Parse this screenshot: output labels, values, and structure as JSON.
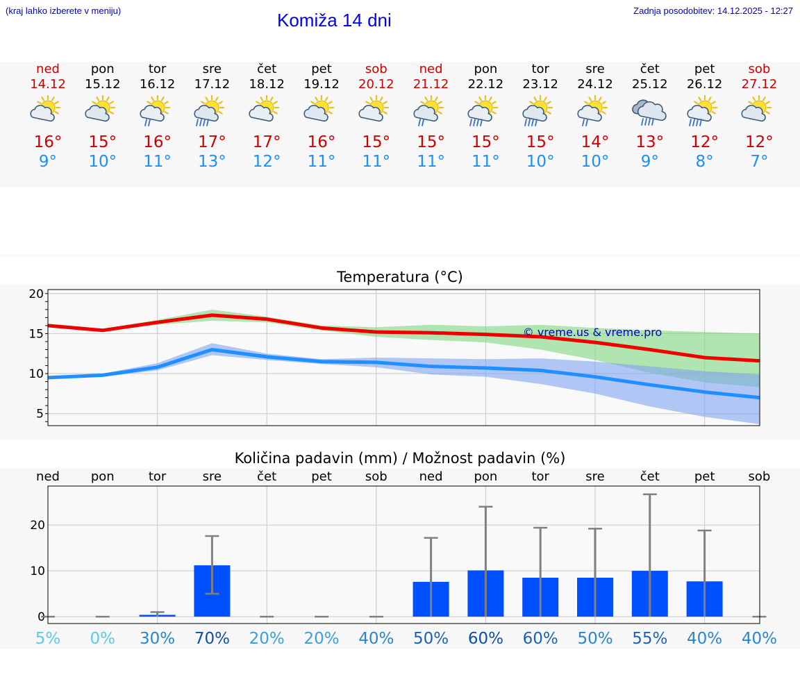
{
  "header": {
    "hint": "(kraj lahko izberete v meniju)",
    "title": "Komiža 14 dni",
    "updated": "Zadnja posodobitev: 14.12.2025 - 12:27"
  },
  "days": [
    {
      "name": "ned",
      "date": "14.12",
      "weekend": true,
      "icon": "sun-cloud-icon",
      "tmax": "16°",
      "tmin": "9°"
    },
    {
      "name": "pon",
      "date": "15.12",
      "weekend": false,
      "icon": "sun-cloud-icon",
      "tmax": "15°",
      "tmin": "10°"
    },
    {
      "name": "tor",
      "date": "16.12",
      "weekend": false,
      "icon": "sun-cloud-rain-icon",
      "tmax": "16°",
      "tmin": "11°"
    },
    {
      "name": "sre",
      "date": "17.12",
      "weekend": false,
      "icon": "sun-cloud-rain-icon",
      "tmax": "17°",
      "tmin": "13°"
    },
    {
      "name": "čet",
      "date": "18.12",
      "weekend": false,
      "icon": "sun-cloud-icon",
      "tmax": "17°",
      "tmin": "12°"
    },
    {
      "name": "pet",
      "date": "19.12",
      "weekend": false,
      "icon": "sun-cloud-icon",
      "tmax": "16°",
      "tmin": "11°"
    },
    {
      "name": "sob",
      "date": "20.12",
      "weekend": true,
      "icon": "sun-cloud-icon",
      "tmax": "15°",
      "tmin": "11°"
    },
    {
      "name": "ned",
      "date": "21.12",
      "weekend": true,
      "icon": "sun-cloud-rain-icon",
      "tmax": "15°",
      "tmin": "11°"
    },
    {
      "name": "pon",
      "date": "22.12",
      "weekend": false,
      "icon": "sun-cloud-rain-icon",
      "tmax": "15°",
      "tmin": "11°"
    },
    {
      "name": "tor",
      "date": "23.12",
      "weekend": false,
      "icon": "sun-cloud-rain-icon",
      "tmax": "15°",
      "tmin": "10°"
    },
    {
      "name": "sre",
      "date": "24.12",
      "weekend": false,
      "icon": "sun-cloud-rain-icon",
      "tmax": "14°",
      "tmin": "10°"
    },
    {
      "name": "čet",
      "date": "25.12",
      "weekend": false,
      "icon": "cloud-rain-icon",
      "tmax": "13°",
      "tmin": "9°"
    },
    {
      "name": "pet",
      "date": "26.12",
      "weekend": false,
      "icon": "sun-cloud-rain-icon",
      "tmax": "12°",
      "tmin": "8°"
    },
    {
      "name": "sob",
      "date": "27.12",
      "weekend": true,
      "icon": "sun-cloud-icon",
      "tmax": "12°",
      "tmin": "7°"
    }
  ],
  "colors": {
    "tmax_line": "#ee0000",
    "tmax_band": "#7ed67e",
    "tmin_line": "#1e90ff",
    "tmin_band": "#7ea4f0",
    "bar": "#0050ff",
    "errorbar": "#808080",
    "grid": "#c8c8c8",
    "copyright": "#0000cc"
  },
  "chart_data": [
    {
      "type": "line",
      "title": "Temperatura (°C)",
      "annotation": "© vreme.us & vreme.pro",
      "x": [
        0,
        1,
        2,
        3,
        4,
        5,
        6,
        7,
        8,
        9,
        10,
        11,
        12,
        13
      ],
      "ylim": [
        3.5,
        20.5
      ],
      "yticks": [
        5,
        10,
        15,
        20
      ],
      "series": [
        {
          "name": "tmax",
          "values": [
            16.0,
            15.4,
            16.4,
            17.3,
            16.8,
            15.7,
            15.2,
            15.1,
            14.9,
            14.6,
            13.9,
            13.0,
            12.0,
            11.6
          ],
          "band_low": [
            16.0,
            15.3,
            16.1,
            16.6,
            16.4,
            15.4,
            14.6,
            14.2,
            13.9,
            13.0,
            11.7,
            10.1,
            8.9,
            8.3
          ],
          "band_high": [
            16.0,
            15.6,
            16.7,
            18.0,
            17.1,
            16.0,
            15.8,
            16.1,
            15.9,
            16.1,
            15.7,
            15.4,
            15.2,
            15.0
          ]
        },
        {
          "name": "tmin",
          "values": [
            9.5,
            9.8,
            10.8,
            13.0,
            12.1,
            11.5,
            11.4,
            10.9,
            10.7,
            10.4,
            9.6,
            8.6,
            7.7,
            7.0
          ],
          "band_low": [
            9.4,
            9.6,
            10.4,
            12.3,
            11.7,
            11.2,
            10.8,
            9.9,
            9.6,
            8.7,
            7.5,
            5.9,
            4.6,
            3.7
          ],
          "band_high": [
            9.6,
            10.0,
            11.3,
            13.8,
            12.5,
            11.8,
            12.0,
            11.9,
            11.8,
            11.9,
            11.5,
            10.9,
            10.3,
            9.9
          ]
        }
      ]
    },
    {
      "type": "bar",
      "title": "Količina padavin (mm) / Možnost padavin (%)",
      "categories": [
        "ned",
        "pon",
        "tor",
        "sre",
        "čet",
        "pet",
        "sob",
        "ned",
        "pon",
        "tor",
        "sre",
        "čet",
        "pet",
        "sob"
      ],
      "ylim": [
        -1.5,
        28.5
      ],
      "yticks": [
        0,
        10,
        20
      ],
      "values": [
        0,
        0,
        0.4,
        11.2,
        0,
        0,
        0,
        7.6,
        10.1,
        8.5,
        8.5,
        10.0,
        7.7,
        0
      ],
      "err_low": [
        0,
        0,
        0,
        5.0,
        0,
        0,
        0,
        0,
        0,
        0,
        0,
        0,
        0,
        0
      ],
      "err_high": [
        0,
        0,
        1.0,
        17.6,
        0,
        0,
        0,
        17.2,
        24.0,
        19.4,
        19.2,
        26.7,
        18.8,
        0
      ],
      "probability": [
        "5%",
        "0%",
        "30%",
        "70%",
        "20%",
        "20%",
        "40%",
        "50%",
        "60%",
        "60%",
        "50%",
        "55%",
        "40%",
        "40%"
      ],
      "probability_colors": [
        "#5bcbea",
        "#5bcbea",
        "#2a86c8",
        "#1050a0",
        "#3aa0d8",
        "#3aa0d8",
        "#2a86c8",
        "#1d62b0",
        "#1050a0",
        "#1d62b0",
        "#2a86c8",
        "#1d62b0",
        "#2a86c8",
        "#2a86c8"
      ]
    }
  ]
}
